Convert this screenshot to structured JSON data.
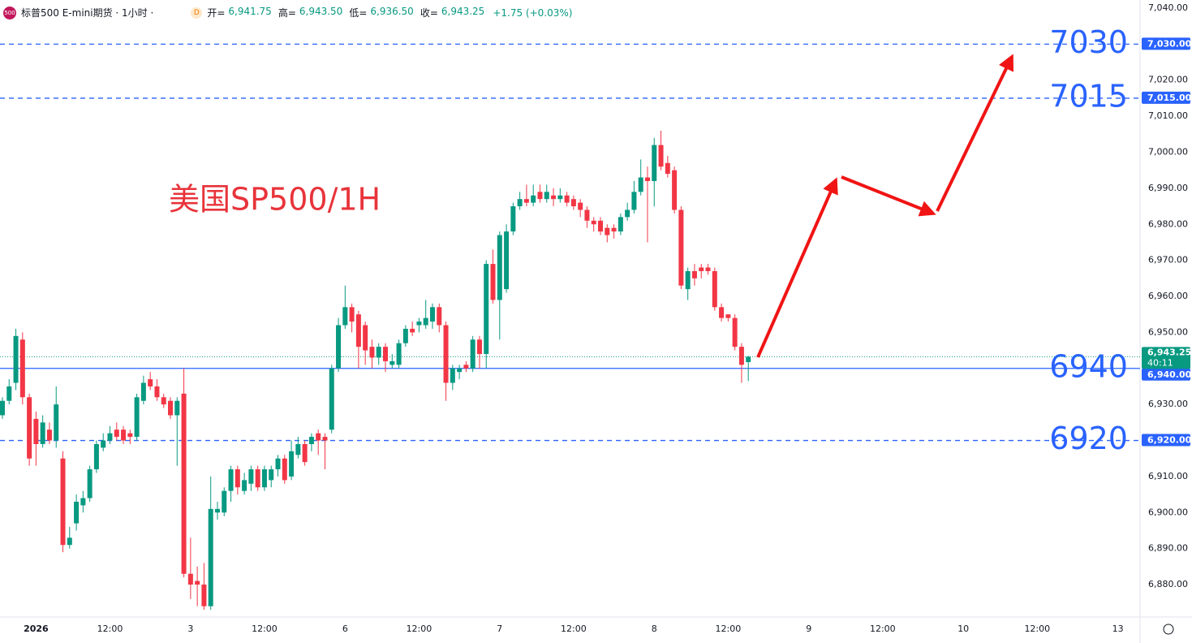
{
  "header": {
    "icon": "500",
    "title": "标普500 E-mini期货 · 1小时 ·",
    "badge": "D",
    "ohlc": [
      {
        "key": "开=",
        "value": "6,941.75"
      },
      {
        "key": "高=",
        "value": "6,943.50"
      },
      {
        "key": "低=",
        "value": "6,936.50"
      },
      {
        "key": "收=",
        "value": "6,943.25"
      }
    ],
    "change": "+1.75 (+0.03%)"
  },
  "chart_data": {
    "type": "candlestick",
    "annotation": "美国SP500/1H",
    "up_color": "#089981",
    "down_color": "#f23645",
    "open": [
      6927,
      6931,
      6936,
      6948,
      6932,
      6926,
      6919,
      6923,
      6920,
      6915,
      6891,
      6897,
      6902,
      6904,
      6912,
      6918,
      6920,
      6923,
      6923,
      6922,
      6921,
      6931,
      6937,
      6935,
      6932,
      6931,
      6927,
      6933,
      6883,
      6881,
      6880,
      6874,
      6900,
      6900,
      6906,
      6912,
      6906,
      6908,
      6912,
      6907,
      6909,
      6912,
      6915,
      6910,
      6916,
      6919,
      6919,
      6922,
      6921,
      6923,
      6940,
      6952,
      6957,
      6955,
      6952,
      6946,
      6943,
      6946,
      6941,
      6941,
      6947,
      6951,
      6952,
      6952,
      6953,
      6957,
      6952,
      6936,
      6939,
      6941,
      6940,
      6948,
      6944,
      6969,
      6959,
      6962,
      6978,
      6985,
      6987,
      6986,
      6989,
      6987,
      6988,
      6987,
      6988,
      6987,
      6986,
      6984,
      6981,
      6981,
      6979,
      6979,
      6978,
      6982,
      6984,
      6989,
      6993,
      6992,
      7002,
      6997,
      6995,
      6984,
      6962,
      6967,
      6968,
      6968,
      6967,
      6957,
      6955,
      6954,
      6946,
      6941.75
    ],
    "high": [
      6932,
      6937,
      6951,
      6950,
      6933,
      6928,
      6927,
      6925,
      6935,
      6917,
      6896,
      6905,
      6906,
      6913,
      6920,
      6922,
      6924,
      6925,
      6924,
      6923,
      6933,
      6938,
      6939,
      6937,
      6933,
      6932,
      6932,
      6940,
      6893,
      6885,
      6886,
      6910,
      6903,
      6907,
      6913,
      6913,
      6911,
      6913,
      6913,
      6913,
      6913,
      6916,
      6916,
      6920,
      6921,
      6920,
      6922,
      6923,
      6922,
      6941,
      6954,
      6963,
      6958,
      6956,
      6953,
      6948,
      6947,
      6947,
      6944,
      6948,
      6952,
      6953,
      6954,
      6959,
      6958,
      6958,
      6953,
      6941,
      6941,
      6942,
      6949,
      6949,
      6970,
      6973,
      6978,
      6980,
      6986,
      6989,
      6991,
      6991,
      6991,
      6991,
      6990,
      6990,
      6989,
      6988,
      6987,
      6985,
      6982,
      6982,
      6980,
      6980,
      6983,
      6986,
      6992,
      6998,
      6996,
      7004,
      7006,
      6999,
      6996,
      6985,
      6968,
      6969,
      6969,
      6969,
      6968,
      6958,
      6955,
      6955,
      6947,
      6943.5
    ],
    "low": [
      6926,
      6930,
      6934,
      6930,
      6913,
      6913,
      6918,
      6919,
      6918,
      6889,
      6890,
      6895,
      6900,
      6903,
      6911,
      6917,
      6919,
      6920,
      6919,
      6919,
      6920,
      6930,
      6934,
      6931,
      6929,
      6926,
      6913,
      6882,
      6876,
      6874,
      6873,
      6873,
      6898,
      6899,
      6903,
      6905,
      6905,
      6906,
      6906,
      6906,
      6907,
      6910,
      6908,
      6909,
      6915,
      6913,
      6917,
      6916,
      6912,
      6922,
      6939,
      6951,
      6950,
      6940,
      6941,
      6940,
      6941,
      6939,
      6940,
      6940,
      6946,
      6949,
      6950,
      6951,
      6951,
      6950,
      6931,
      6934,
      6937,
      6939,
      6939,
      6940,
      6940,
      6958,
      6948,
      6961,
      6977,
      6984,
      6985,
      6985,
      6986,
      6986,
      6985,
      6986,
      6985,
      6984,
      6982,
      6979,
      6978,
      6977,
      6975,
      6976,
      6977,
      6981,
      6983,
      6988,
      6975,
      6985,
      6995,
      6993,
      6983,
      6962,
      6959,
      6963,
      6965,
      6966,
      6956,
      6953,
      6953,
      6945,
      6936,
      6936.5
    ],
    "close": [
      6931,
      6935,
      6949,
      6932,
      6915,
      6919,
      6925,
      6920,
      6930,
      6891,
      6893,
      6903,
      6904,
      6912,
      6919,
      6920,
      6922,
      6921,
      6920,
      6921,
      6932,
      6936,
      6935,
      6932,
      6930,
      6927,
      6931,
      6883,
      6880,
      6880,
      6874,
      6901,
      6901,
      6906,
      6912,
      6907,
      6909,
      6912,
      6907,
      6912,
      6912,
      6915,
      6909,
      6917,
      6919,
      6914,
      6921,
      6920,
      6920,
      6940,
      6952,
      6957,
      6953,
      6946,
      6945,
      6943,
      6946,
      6942,
      6942,
      6947,
      6951,
      6950,
      6953,
      6954,
      6957,
      6952,
      6936,
      6940,
      6940,
      6940,
      6948,
      6944,
      6969,
      6959,
      6977,
      6978,
      6985,
      6987,
      6986,
      6988,
      6987,
      6989,
      6987,
      6988,
      6986,
      6985,
      6984,
      6981,
      6980,
      6978,
      6977,
      6978,
      6982,
      6984,
      6989,
      6993,
      6992,
      7002,
      6996,
      6994,
      6984,
      6963,
      6967,
      6965,
      6967,
      6967,
      6957,
      6954,
      6954,
      6946,
      6941,
      6943.25
    ],
    "xlim": [
      -0.36,
      169.3
    ],
    "xticks": [
      {
        "value": 5,
        "label": "2026"
      },
      {
        "value": 16,
        "label": "12:00"
      },
      {
        "value": 28,
        "label": "3"
      },
      {
        "value": 39,
        "label": "12:00"
      },
      {
        "value": 51,
        "label": "6"
      },
      {
        "value": 62,
        "label": "12:00"
      },
      {
        "value": 74,
        "label": "7"
      },
      {
        "value": 85,
        "label": "12:00"
      },
      {
        "value": 97,
        "label": "8"
      },
      {
        "value": 108,
        "label": "12:00"
      },
      {
        "value": 120,
        "label": "9"
      },
      {
        "value": 131,
        "label": "12:00"
      },
      {
        "value": 143,
        "label": "10"
      },
      {
        "value": 154,
        "label": "12:00"
      },
      {
        "value": 166,
        "label": "13"
      }
    ],
    "ylim": [
      6871,
      7042.25
    ],
    "yticks": [
      {
        "value": 7040,
        "label": "7,040.00"
      },
      {
        "value": 7020,
        "label": "7,020.00"
      },
      {
        "value": 7010,
        "label": "7,010.00"
      },
      {
        "value": 7000,
        "label": "7,000.00"
      },
      {
        "value": 6990,
        "label": "6,990.00"
      },
      {
        "value": 6980,
        "label": "6,980.00"
      },
      {
        "value": 6970,
        "label": "6,970.00"
      },
      {
        "value": 6960,
        "label": "6,960.00"
      },
      {
        "value": 6950,
        "label": "6,950.00"
      },
      {
        "value": 6930,
        "label": "6,930.00"
      },
      {
        "value": 6910,
        "label": "6,910.00"
      },
      {
        "value": 6900,
        "label": "6,900.00"
      },
      {
        "value": 6890,
        "label": "6,890.00"
      },
      {
        "value": 6880,
        "label": "6,880.00"
      }
    ],
    "level_color": "#2962ff",
    "levels": [
      {
        "value": 7030,
        "label": "7,030.00",
        "style": "dashed"
      },
      {
        "value": 7015,
        "label": "7,015.00",
        "style": "dashed"
      },
      {
        "value": 6940,
        "label": "6,940.00",
        "style": "solid"
      },
      {
        "value": 6920,
        "label": "6,920.00",
        "style": "dashed"
      }
    ],
    "last": {
      "value": 6943.25,
      "label": "6,943.25",
      "countdown": "40:11"
    }
  }
}
